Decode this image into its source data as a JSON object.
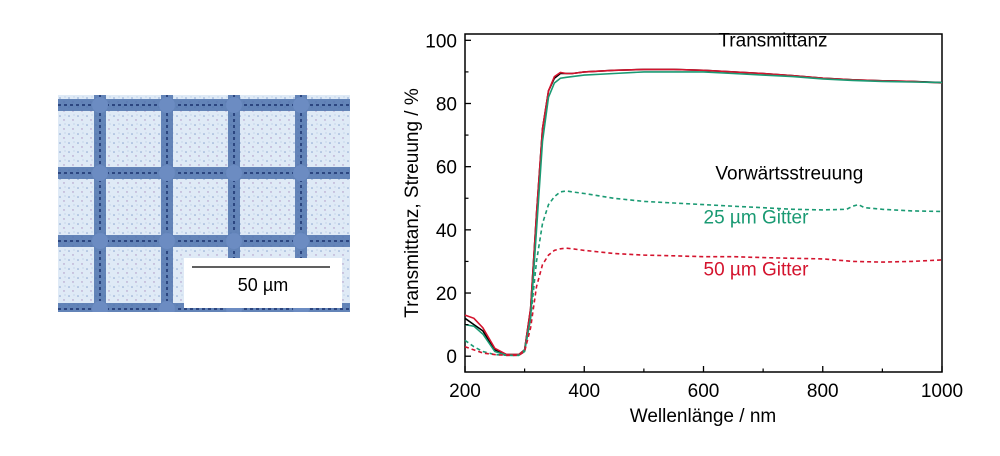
{
  "micrograph": {
    "scale_bar_label": "50 µm",
    "background_color": "#dbe9f5",
    "grid_color": "#3f64a3"
  },
  "chart_data": {
    "type": "line",
    "xlabel": "Wellenlänge / nm",
    "ylabel": "Transmittanz, Streuung / %",
    "xlim": [
      200,
      1000
    ],
    "ylim": [
      -5,
      102
    ],
    "xticks": [
      200,
      400,
      600,
      800,
      1000
    ],
    "yticks": [
      0,
      20,
      40,
      60,
      80,
      100
    ],
    "grid": false,
    "annotations": [
      {
        "text": "Transmittanz",
        "x": 625,
        "y": 98,
        "color": "#000000"
      },
      {
        "text": "Vorwärtsstreuung",
        "x": 620,
        "y": 56,
        "color": "#000000"
      },
      {
        "text": "25 µm Gitter",
        "x": 600,
        "y": 42,
        "color": "#1a9a73"
      },
      {
        "text": "50 µm Gitter",
        "x": 600,
        "y": 25.5,
        "color": "#d4142e"
      }
    ],
    "series": [
      {
        "color": "#000000",
        "dash": "solid",
        "x": [
          200,
          215,
          230,
          250,
          270,
          290,
          300,
          310,
          320,
          330,
          340,
          350,
          360,
          370,
          380,
          400,
          450,
          500,
          550,
          600,
          650,
          700,
          750,
          800,
          850,
          900,
          950,
          1000
        ],
        "y": [
          12,
          10,
          8,
          2,
          0.5,
          0.5,
          2,
          15,
          45,
          72,
          84,
          88,
          89.5,
          89.5,
          89.5,
          90,
          90.5,
          90.8,
          90.8,
          90.5,
          90,
          89.5,
          88.8,
          88,
          87.5,
          87.2,
          87,
          86.6
        ]
      },
      {
        "color": "#d4142e",
        "dash": "solid",
        "x": [
          200,
          215,
          230,
          250,
          270,
          290,
          300,
          310,
          320,
          330,
          340,
          350,
          360,
          370,
          380,
          400,
          450,
          500,
          550,
          600,
          650,
          700,
          750,
          800,
          850,
          900,
          950,
          1000
        ],
        "y": [
          13,
          12,
          9,
          2.5,
          0.5,
          0.5,
          2,
          15,
          45,
          72,
          84,
          88.5,
          89.8,
          89.5,
          89.5,
          90,
          90.5,
          90.8,
          90.8,
          90.5,
          90,
          89.5,
          88.8,
          88,
          87.5,
          87.2,
          87,
          86.5
        ]
      },
      {
        "color": "#1a9a73",
        "dash": "solid",
        "x": [
          200,
          215,
          230,
          250,
          270,
          290,
          300,
          310,
          320,
          330,
          340,
          350,
          360,
          370,
          380,
          400,
          450,
          500,
          550,
          600,
          650,
          700,
          750,
          800,
          850,
          900,
          950,
          1000
        ],
        "y": [
          10,
          9.5,
          7,
          1.5,
          0.3,
          0.3,
          1.5,
          12,
          40,
          68,
          82,
          86.5,
          88,
          88.3,
          88.5,
          89,
          89.5,
          90,
          90,
          90,
          89.5,
          89,
          88.5,
          87.8,
          87.3,
          87,
          86.8,
          86.6
        ]
      },
      {
        "color": "#1a9a73",
        "dash": "dashed",
        "x": [
          200,
          215,
          230,
          250,
          270,
          290,
          300,
          310,
          320,
          330,
          340,
          350,
          360,
          370,
          380,
          400,
          450,
          500,
          550,
          600,
          650,
          700,
          750,
          800,
          840,
          850,
          860,
          870,
          900,
          950,
          1000
        ],
        "y": [
          5,
          3,
          1.5,
          0.5,
          0.3,
          0.3,
          2,
          12,
          30,
          42,
          48,
          50.5,
          52,
          52.3,
          52,
          51.5,
          50,
          49,
          48.5,
          48,
          47.5,
          47,
          46.5,
          46.3,
          46.5,
          47.5,
          48,
          47,
          46.5,
          46,
          45.8
        ]
      },
      {
        "color": "#d4142e",
        "dash": "dashed",
        "x": [
          200,
          215,
          230,
          250,
          270,
          290,
          300,
          310,
          320,
          330,
          340,
          350,
          360,
          370,
          380,
          400,
          450,
          500,
          550,
          600,
          650,
          700,
          750,
          800,
          850,
          900,
          950,
          1000
        ],
        "y": [
          3,
          2,
          1,
          0.5,
          0.3,
          0.3,
          1.5,
          9,
          22,
          29,
          32,
          33.5,
          34,
          34.2,
          34,
          33.5,
          32.5,
          32,
          31.8,
          31.5,
          31.5,
          31.2,
          31,
          30.8,
          30,
          29.8,
          30,
          30.5
        ]
      }
    ]
  }
}
